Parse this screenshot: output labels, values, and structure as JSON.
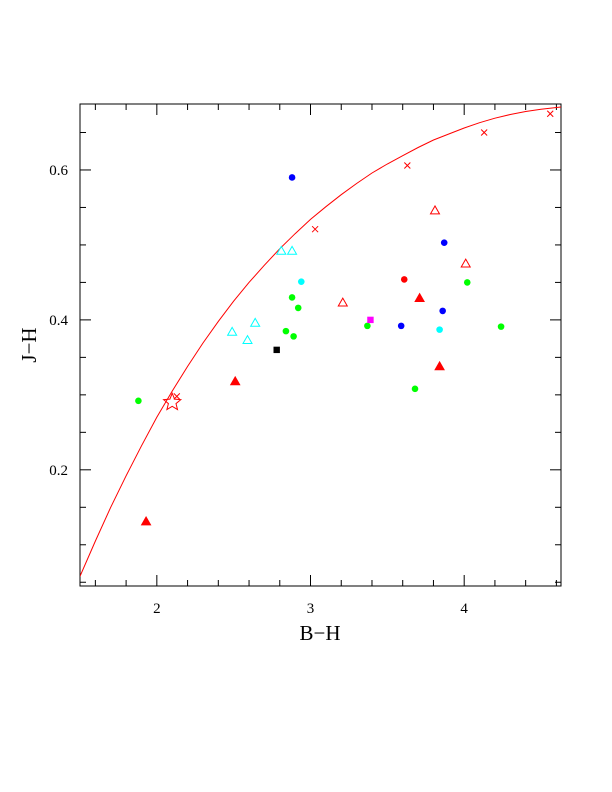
{
  "chart_data": {
    "type": "scatter",
    "title": "",
    "xlabel": "B−H",
    "ylabel": "J−H",
    "xlim": [
      1.5,
      4.63
    ],
    "ylim": [
      0.045,
      0.688
    ],
    "x_ticks": [
      2,
      3,
      4
    ],
    "x_tick_labels": [
      "2",
      "3",
      "4"
    ],
    "y_ticks": [
      0.2,
      0.4,
      0.6
    ],
    "y_tick_labels": [
      "0.2",
      "0.4",
      "0.6"
    ],
    "grid": false,
    "legend": "none",
    "curve": {
      "color": "#ff0000",
      "points": [
        [
          1.5,
          0.058
        ],
        [
          1.6,
          0.105
        ],
        [
          1.7,
          0.15
        ],
        [
          1.8,
          0.192
        ],
        [
          1.9,
          0.232
        ],
        [
          2.0,
          0.27
        ],
        [
          2.1,
          0.305
        ],
        [
          2.2,
          0.338
        ],
        [
          2.3,
          0.369
        ],
        [
          2.4,
          0.398
        ],
        [
          2.5,
          0.425
        ],
        [
          2.6,
          0.45
        ],
        [
          2.7,
          0.473
        ],
        [
          2.8,
          0.495
        ],
        [
          2.9,
          0.515
        ],
        [
          3.0,
          0.534
        ],
        [
          3.1,
          0.551
        ],
        [
          3.2,
          0.567
        ],
        [
          3.3,
          0.582
        ],
        [
          3.4,
          0.596
        ],
        [
          3.5,
          0.608
        ],
        [
          3.6,
          0.619
        ],
        [
          3.7,
          0.63
        ],
        [
          3.8,
          0.64
        ],
        [
          3.9,
          0.648
        ],
        [
          4.0,
          0.656
        ],
        [
          4.1,
          0.663
        ],
        [
          4.2,
          0.669
        ],
        [
          4.3,
          0.674
        ],
        [
          4.4,
          0.678
        ],
        [
          4.5,
          0.681
        ],
        [
          4.63,
          0.684
        ]
      ],
      "cross_markers": [
        [
          2.13,
          0.298
        ],
        [
          3.03,
          0.521
        ],
        [
          3.63,
          0.606
        ],
        [
          4.13,
          0.65
        ],
        [
          4.56,
          0.675
        ]
      ]
    },
    "star_marker": {
      "x": 2.1,
      "y": 0.29,
      "color": "#ff0000"
    },
    "series": [
      {
        "marker": "filled-circle",
        "color": "#0000ff",
        "points": [
          [
            2.88,
            0.59
          ],
          [
            3.87,
            0.503
          ],
          [
            3.59,
            0.392
          ],
          [
            3.86,
            0.412
          ]
        ]
      },
      {
        "marker": "filled-circle",
        "color": "#ff0000",
        "points": [
          [
            3.61,
            0.454
          ]
        ]
      },
      {
        "marker": "filled-circle",
        "color": "#00ff00",
        "points": [
          [
            1.88,
            0.292
          ],
          [
            2.88,
            0.43
          ],
          [
            2.92,
            0.416
          ],
          [
            2.84,
            0.385
          ],
          [
            2.89,
            0.378
          ],
          [
            3.37,
            0.392
          ],
          [
            3.68,
            0.308
          ],
          [
            4.02,
            0.45
          ],
          [
            4.24,
            0.391
          ]
        ]
      },
      {
        "marker": "filled-circle",
        "color": "#00ffff",
        "points": [
          [
            2.94,
            0.451
          ],
          [
            3.84,
            0.387
          ]
        ]
      },
      {
        "marker": "open-triangle",
        "color": "#00ffff",
        "points": [
          [
            2.81,
            0.492
          ],
          [
            2.88,
            0.492
          ],
          [
            2.49,
            0.384
          ],
          [
            2.64,
            0.396
          ],
          [
            2.59,
            0.373
          ]
        ]
      },
      {
        "marker": "open-triangle",
        "color": "#ff0000",
        "points": [
          [
            3.21,
            0.423
          ],
          [
            3.81,
            0.546
          ],
          [
            4.01,
            0.475
          ]
        ]
      },
      {
        "marker": "filled-triangle",
        "color": "#ff0000",
        "points": [
          [
            1.93,
            0.131
          ],
          [
            2.51,
            0.318
          ],
          [
            3.71,
            0.429
          ],
          [
            3.84,
            0.338
          ]
        ]
      },
      {
        "marker": "filled-square",
        "color": "#000000",
        "points": [
          [
            2.78,
            0.36
          ]
        ]
      },
      {
        "marker": "filled-square",
        "color": "#ff00ff",
        "points": [
          [
            3.39,
            0.4
          ]
        ]
      }
    ]
  }
}
